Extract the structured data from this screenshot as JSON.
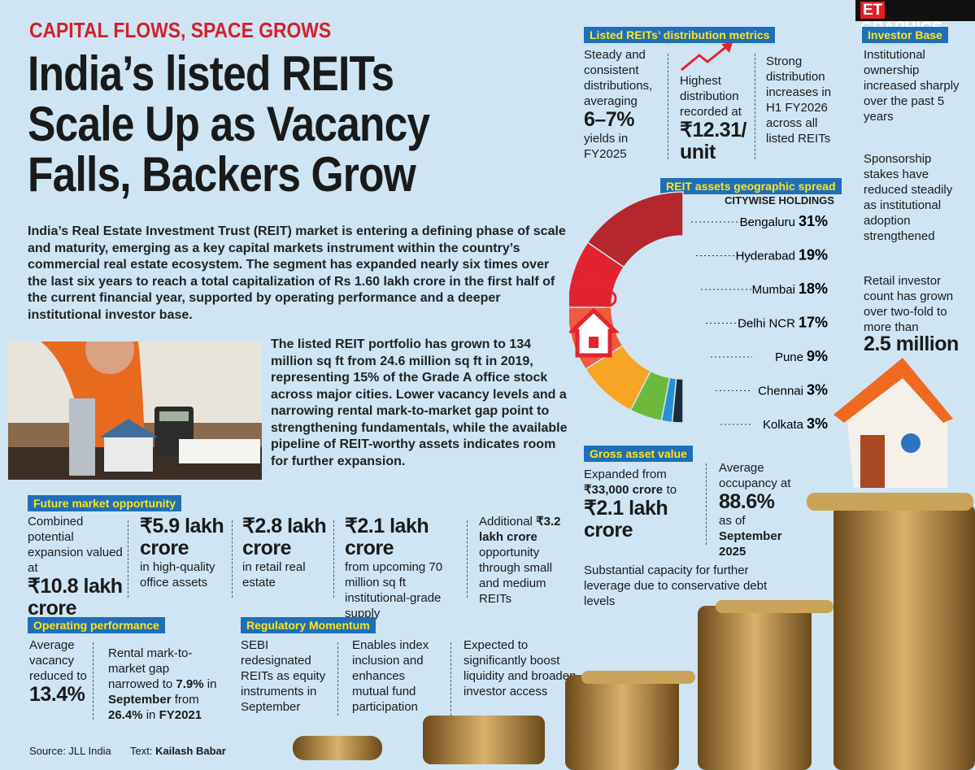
{
  "brand": {
    "et": "ET",
    "graphics": "GRAPHICS"
  },
  "header": {
    "kicker": "CAPITAL FLOWS, SPACE GROWS",
    "title_lines": [
      "India’s listed REITs",
      "Scale Up as Vacancy",
      "Falls, Backers Grow"
    ]
  },
  "intro": "India’s Real Estate Investment Trust (REIT) market is entering a defining phase of scale and maturity, emerging as a key capital markets instrument within the country’s commercial real estate ecosystem. The segment has expanded nearly six times over the last six years to reach a total capitalization of Rs 1.60 lakh crore in the first half of the current financial year, supported by operating performance and a deeper institutional investor base.",
  "portfolio": "The listed REIT portfolio has grown to 134 million sq ft from 24.6 million sq ft in 2019, representing 15% of the Grade A office stock across major cities. Lower vacancy levels and a narrowing rental mark-to-market gap point to strengthening fundamentals, while the available pipeline of REIT-worthy assets indicates room for further expansion.",
  "future_market": {
    "title": "Future market opportunity",
    "combined_text": "Combined potential expansion valued at",
    "combined_value": "₹10.8 lakh crore",
    "items": [
      {
        "value": "₹5.9 lakh crore",
        "text": "in high-quality office assets"
      },
      {
        "value": "₹2.8 lakh crore",
        "text": "in retail real estate"
      },
      {
        "value": "₹2.1 lakh crore",
        "text": "from upcoming 70 million sq ft institutional-grade supply"
      }
    ],
    "additional": [
      "Additional",
      "₹3.2 lakh crore",
      "opportunity through small and medium REITs"
    ]
  },
  "distribution": {
    "title": "Listed REITs’ distribution metrics",
    "col1": [
      "Steady and consistent distributions, averaging",
      "6–7%",
      "yields in FY2025"
    ],
    "col2": [
      "Highest distribution recorded at",
      "₹12.31/ unit"
    ],
    "col3": "Strong distribution increases in H1 FY2026 across all listed REITs"
  },
  "investor_base": {
    "title": "Investor Base",
    "items": [
      "Institutional ownership increased sharply over the past 5 years",
      "Sponsorship stakes have reduced steadily as institutional adoption strengthened",
      "Retail investor count has grown over two-fold to more than"
    ],
    "highlight": "2.5 million"
  },
  "geo_spread": {
    "title": "REIT assets geographic spread",
    "subtitle": "CITYWISE HOLDINGS",
    "categories": [
      "Bengaluru",
      "Hyderabad",
      "Mumbai",
      "Delhi NCR",
      "Pune",
      "Chennai",
      "Kolkata"
    ],
    "values": [
      31,
      19,
      18,
      17,
      9,
      3,
      3
    ],
    "value_labels": [
      "31%",
      "19%",
      "18%",
      "17%",
      "9%",
      "3%",
      "3%"
    ],
    "colors": [
      "#b3272d",
      "#e2232f",
      "#ef5b3c",
      "#f6a524",
      "#6cba3b",
      "#2b8fd3",
      "#1c2b3b"
    ]
  },
  "gross_asset": {
    "title": "Gross asset value",
    "expanded": [
      "Expanded from",
      "₹33,000 crore",
      "to",
      "₹2.1 lakh crore"
    ],
    "occupancy": [
      "Average occupancy at",
      "88.6%",
      "as of",
      "September 2025"
    ],
    "leverage": "Substantial capacity for further leverage due to conservative debt levels"
  },
  "operating": {
    "title": "Operating performance",
    "vacancy": [
      "Average vacancy reduced to",
      "13.4%"
    ],
    "rental": [
      "Rental mark-to-market gap narrowed to",
      "7.9%",
      "in",
      "September",
      "from",
      "26.4%",
      "in",
      "FY2021"
    ]
  },
  "regulatory": {
    "title": "Regulatory Momentum",
    "items": [
      "SEBI redesignated REITs as equity instruments in September",
      "Enables index inclusion and enhances mutual fund participation",
      "Expected to significantly boost liquidity and broaden investor access"
    ]
  },
  "footer": {
    "source": "Source: JLL India",
    "text_label": "Text:",
    "author": "Kailash Babar"
  }
}
